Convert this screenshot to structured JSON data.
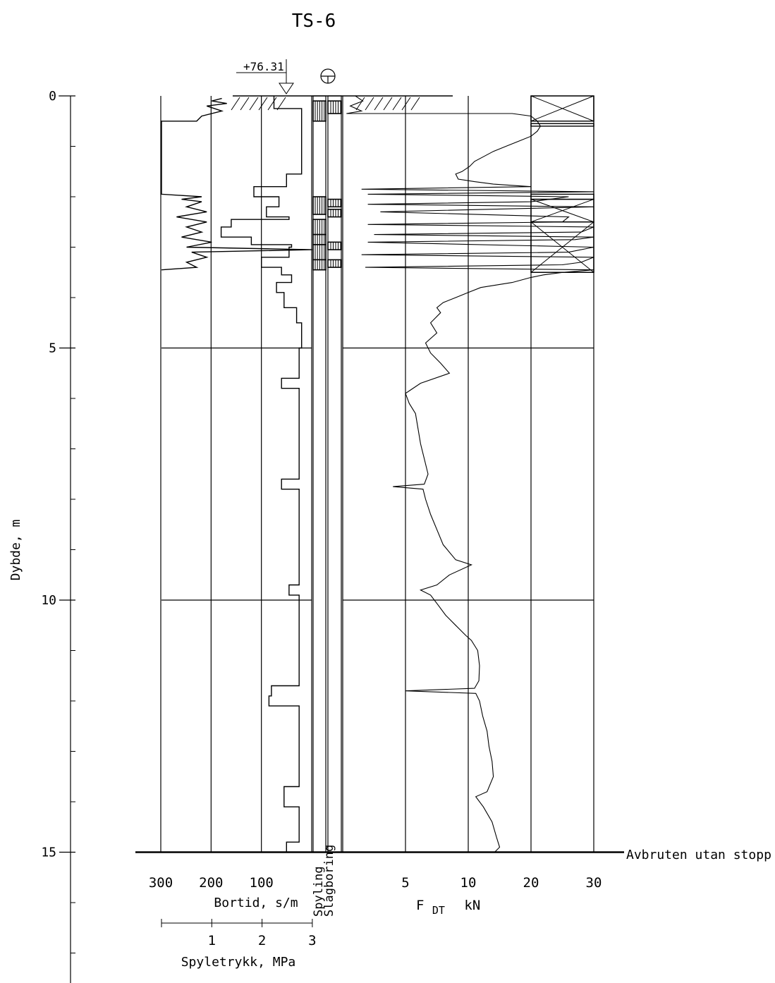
{
  "title": "TS-6",
  "elevation_label": "+76.31",
  "y_axis_label": "Dybde, m",
  "stop_label": "Avbruten utan stopp",
  "bortid_axis_label": "Bortid, s/m",
  "spyle_axis_label": "Spyletrykk, MPa",
  "force_axis_label_main": "F",
  "force_axis_label_sub": "DT",
  "force_axis_unit": "kN",
  "spyling_label": "Spyling",
  "slagboring_label": "Slagboring",
  "depth_ticks": [
    {
      "value": 0,
      "label": "0"
    },
    {
      "value": 5,
      "label": "5"
    },
    {
      "value": 10,
      "label": "10"
    },
    {
      "value": 15,
      "label": "15"
    }
  ],
  "bortid_ticks": [
    {
      "value": 300,
      "label": "300"
    },
    {
      "value": 200,
      "label": "200"
    },
    {
      "value": 100,
      "label": "100"
    }
  ],
  "spyle_ticks": [
    {
      "value": 1,
      "label": "1"
    },
    {
      "value": 2,
      "label": "2"
    },
    {
      "value": 3,
      "label": "3"
    }
  ],
  "force_ticks": [
    {
      "value": 5,
      "label": "5"
    },
    {
      "value": 10,
      "label": "10"
    },
    {
      "value": 20,
      "label": "20"
    },
    {
      "value": 30,
      "label": "30"
    }
  ],
  "chart_data": {
    "type": "line",
    "title": "TS-6",
    "ylabel": "Dybde, m",
    "ylim": [
      0,
      17
    ],
    "stop_depth": 15,
    "bortid_axis": {
      "label": "Bortid, s/m",
      "direction": "reversed",
      "ticks": [
        300,
        200,
        100
      ]
    },
    "force_axis": {
      "label": "F DT kN",
      "ticks": [
        5,
        10,
        20,
        30
      ],
      "scale": "piecewise: 0-10 and 10-30"
    },
    "series": [
      {
        "name": "Bortid, s/m",
        "axis": "bortid",
        "points": [
          [
            0,
            75
          ],
          [
            0.25,
            75
          ],
          [
            0.25,
            20
          ],
          [
            1.55,
            20
          ],
          [
            1.55,
            50
          ],
          [
            1.8,
            50
          ],
          [
            1.8,
            115
          ],
          [
            2.0,
            115
          ],
          [
            2.0,
            65
          ],
          [
            2.2,
            65
          ],
          [
            2.2,
            90
          ],
          [
            2.4,
            90
          ],
          [
            2.4,
            45
          ],
          [
            2.45,
            45
          ],
          [
            2.45,
            160
          ],
          [
            2.6,
            160
          ],
          [
            2.6,
            180
          ],
          [
            2.8,
            180
          ],
          [
            2.8,
            120
          ],
          [
            2.95,
            120
          ],
          [
            2.95,
            40
          ],
          [
            3.0,
            40
          ],
          [
            3.0,
            45
          ],
          [
            3.2,
            45
          ],
          [
            3.2,
            100
          ],
          [
            3.4,
            100
          ],
          [
            3.4,
            60
          ],
          [
            3.55,
            60
          ],
          [
            3.55,
            40
          ],
          [
            3.7,
            40
          ],
          [
            3.7,
            70
          ],
          [
            3.9,
            70
          ],
          [
            3.9,
            55
          ],
          [
            4.2,
            55
          ],
          [
            4.2,
            30
          ],
          [
            4.5,
            30
          ],
          [
            4.5,
            20
          ],
          [
            5.0,
            20
          ],
          [
            5.0,
            25
          ],
          [
            5.6,
            25
          ],
          [
            5.6,
            60
          ],
          [
            5.8,
            60
          ],
          [
            5.8,
            25
          ],
          [
            7.6,
            25
          ],
          [
            7.6,
            60
          ],
          [
            7.8,
            60
          ],
          [
            7.8,
            25
          ],
          [
            9.7,
            25
          ],
          [
            9.7,
            45
          ],
          [
            9.9,
            45
          ],
          [
            9.9,
            25
          ],
          [
            11.7,
            25
          ],
          [
            11.7,
            80
          ],
          [
            11.9,
            80
          ],
          [
            11.9,
            85
          ],
          [
            12.1,
            85
          ],
          [
            12.1,
            25
          ],
          [
            13.7,
            25
          ],
          [
            13.7,
            55
          ],
          [
            14.1,
            55
          ],
          [
            14.1,
            25
          ],
          [
            14.8,
            25
          ],
          [
            14.8,
            50
          ],
          [
            15.0,
            50
          ]
        ]
      },
      {
        "name": "Spyletrykk, MPa",
        "axis": "spyle",
        "points": [
          [
            0.05,
            1.2
          ],
          [
            0.1,
            1.0
          ],
          [
            0.15,
            1.3
          ],
          [
            0.2,
            0.9
          ],
          [
            0.3,
            1.2
          ],
          [
            0.4,
            0.8
          ],
          [
            0.5,
            0.7
          ],
          [
            0.5,
            0.0
          ],
          [
            1.95,
            0.0
          ],
          [
            2.0,
            0.8
          ],
          [
            2.05,
            0.4
          ],
          [
            2.1,
            0.8
          ],
          [
            2.2,
            0.5
          ],
          [
            2.3,
            0.9
          ],
          [
            2.4,
            0.3
          ],
          [
            2.5,
            0.9
          ],
          [
            2.6,
            0.5
          ],
          [
            2.7,
            0.8
          ],
          [
            2.8,
            0.4
          ],
          [
            2.9,
            1.0
          ],
          [
            3.0,
            0.5
          ],
          [
            3.05,
            3.0
          ],
          [
            3.1,
            0.6
          ],
          [
            3.2,
            0.9
          ],
          [
            3.3,
            0.5
          ],
          [
            3.4,
            0.7
          ],
          [
            3.45,
            0.0
          ]
        ]
      },
      {
        "name": "F DT kN",
        "axis": "force",
        "points": [
          [
            0,
            1.0
          ],
          [
            0.1,
            1.6
          ],
          [
            0.2,
            0.6
          ],
          [
            0.3,
            1.5
          ],
          [
            0.35,
            0.3
          ],
          [
            0.35,
            17
          ],
          [
            0.4,
            20
          ],
          [
            0.5,
            21
          ],
          [
            0.6,
            21.5
          ],
          [
            0.7,
            21
          ],
          [
            0.8,
            20
          ],
          [
            0.9,
            18
          ],
          [
            1.0,
            16
          ],
          [
            1.1,
            14
          ],
          [
            1.2,
            12.5
          ],
          [
            1.3,
            11
          ],
          [
            1.4,
            10.2
          ],
          [
            1.5,
            9.5
          ],
          [
            1.55,
            9.0
          ],
          [
            1.65,
            9.2
          ],
          [
            1.7,
            11
          ],
          [
            1.75,
            14
          ],
          [
            1.8,
            20
          ],
          [
            1.85,
            1.5
          ],
          [
            1.9,
            30
          ],
          [
            1.95,
            2.0
          ],
          [
            2.0,
            26
          ],
          [
            2.1,
            20
          ],
          [
            2.15,
            2.0
          ],
          [
            2.2,
            30
          ],
          [
            2.3,
            3.0
          ],
          [
            2.4,
            26
          ],
          [
            2.5,
            25
          ],
          [
            2.55,
            2.0
          ],
          [
            2.6,
            30
          ],
          [
            2.7,
            28
          ],
          [
            2.75,
            2.5
          ],
          [
            2.8,
            30
          ],
          [
            2.85,
            27
          ],
          [
            2.9,
            2.0
          ],
          [
            3.0,
            30
          ],
          [
            3.1,
            26
          ],
          [
            3.15,
            1.5
          ],
          [
            3.2,
            30
          ],
          [
            3.3,
            28
          ],
          [
            3.35,
            25
          ],
          [
            3.4,
            1.8
          ],
          [
            3.45,
            30
          ],
          [
            3.5,
            25
          ],
          [
            3.55,
            22
          ],
          [
            3.6,
            20
          ],
          [
            3.7,
            17
          ],
          [
            3.8,
            12
          ],
          [
            3.9,
            10
          ],
          [
            4.0,
            9.0
          ],
          [
            4.1,
            8.0
          ],
          [
            4.2,
            7.5
          ],
          [
            4.3,
            7.8
          ],
          [
            4.5,
            7.0
          ],
          [
            4.7,
            7.5
          ],
          [
            4.9,
            6.6
          ],
          [
            5.1,
            7.0
          ],
          [
            5.3,
            7.8
          ],
          [
            5.5,
            8.5
          ],
          [
            5.7,
            6.2
          ],
          [
            5.9,
            5.0
          ],
          [
            6.1,
            5.3
          ],
          [
            6.3,
            5.8
          ],
          [
            6.6,
            6.0
          ],
          [
            6.9,
            6.2
          ],
          [
            7.2,
            6.5
          ],
          [
            7.5,
            6.8
          ],
          [
            7.7,
            6.5
          ],
          [
            7.75,
            4.0
          ],
          [
            7.8,
            6.4
          ],
          [
            8.0,
            6.6
          ],
          [
            8.3,
            7.0
          ],
          [
            8.6,
            7.5
          ],
          [
            8.9,
            8.0
          ],
          [
            9.2,
            9.0
          ],
          [
            9.3,
            10.5
          ],
          [
            9.5,
            8.5
          ],
          [
            9.7,
            7.5
          ],
          [
            9.8,
            6.2
          ],
          [
            9.9,
            7.0
          ],
          [
            10.1,
            7.6
          ],
          [
            10.3,
            8.2
          ],
          [
            10.5,
            9.0
          ],
          [
            10.7,
            9.8
          ],
          [
            10.8,
            10.5
          ],
          [
            11.0,
            11.5
          ],
          [
            11.3,
            11.8
          ],
          [
            11.6,
            11.7
          ],
          [
            11.75,
            11.0
          ],
          [
            11.8,
            5.0
          ],
          [
            11.85,
            11.2
          ],
          [
            12.0,
            11.8
          ],
          [
            12.3,
            12.3
          ],
          [
            12.6,
            13.0
          ],
          [
            12.9,
            13.3
          ],
          [
            13.2,
            13.8
          ],
          [
            13.5,
            14.0
          ],
          [
            13.8,
            13.0
          ],
          [
            13.9,
            11.2
          ],
          [
            14.1,
            12.4
          ],
          [
            14.4,
            13.8
          ],
          [
            14.7,
            14.5
          ],
          [
            14.9,
            15.0
          ],
          [
            15.0,
            14.2
          ]
        ]
      }
    ],
    "spyling_intervals": [
      [
        0.1,
        0.5
      ],
      [
        2.0,
        2.35
      ],
      [
        2.45,
        2.75
      ],
      [
        2.75,
        2.95
      ],
      [
        2.95,
        3.25
      ],
      [
        3.25,
        3.45
      ]
    ],
    "slagboring_intervals": [
      [
        0.1,
        0.35
      ],
      [
        2.05,
        2.2
      ],
      [
        2.25,
        2.4
      ],
      [
        2.9,
        3.05
      ],
      [
        3.25,
        3.4
      ]
    ],
    "soil_column": [
      {
        "from": 0,
        "to": 0.5,
        "pattern": "cross"
      },
      {
        "from": 0.55,
        "to": 0.6,
        "pattern": "bar"
      },
      {
        "from": 1.95,
        "to": 2.05,
        "pattern": "bar"
      },
      {
        "from": 2.05,
        "to": 2.5,
        "pattern": "cross"
      },
      {
        "from": 2.5,
        "to": 3.5,
        "pattern": "cross"
      }
    ],
    "grid": "vertical and horizontal at 5 m",
    "legend": "none"
  }
}
